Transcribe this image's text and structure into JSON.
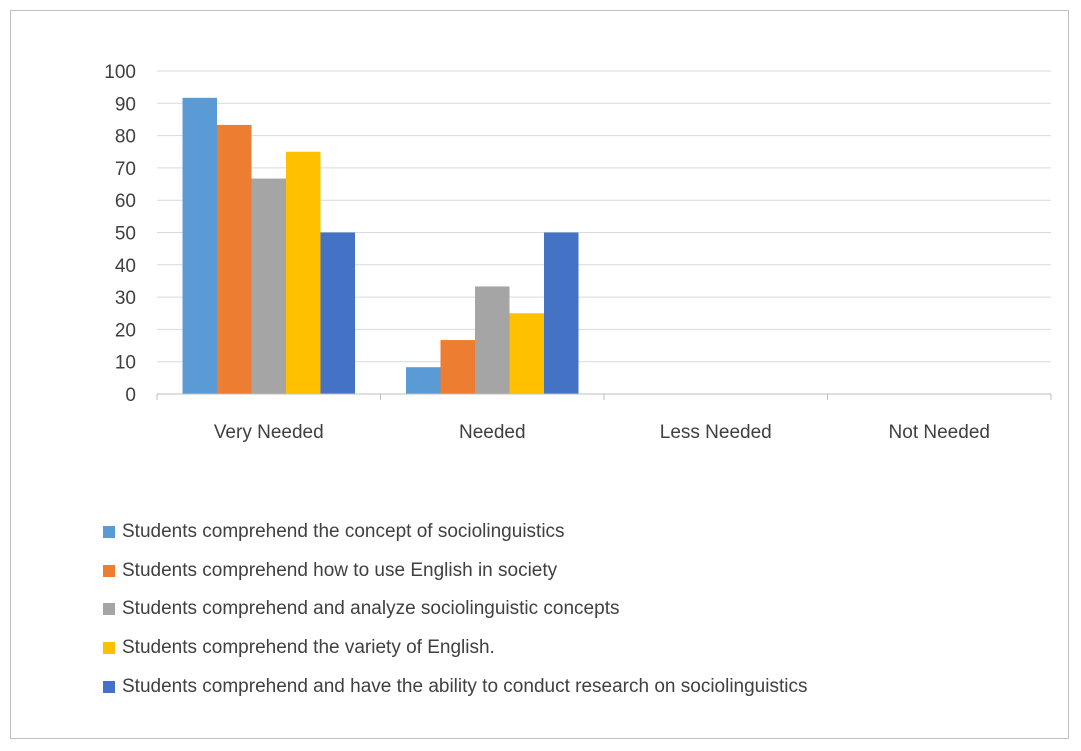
{
  "chart_data": {
    "type": "bar",
    "categories": [
      "Very Needed",
      "Needed",
      "Less Needed",
      "Not Needed"
    ],
    "series": [
      {
        "name": "Students comprehend the concept of sociolinguistics",
        "color": "#5b9bd5",
        "values": [
          91.7,
          8.3,
          0,
          0
        ]
      },
      {
        "name": "Students comprehend how to use English in society",
        "color": "#ed7d31",
        "values": [
          83.3,
          16.7,
          0,
          0
        ]
      },
      {
        "name": "Students comprehend and analyze sociolinguistic concepts",
        "color": "#a5a5a5",
        "values": [
          66.7,
          33.3,
          0,
          0
        ]
      },
      {
        "name": "Students comprehend the variety of English.",
        "color": "#ffc000",
        "values": [
          75,
          25,
          0,
          0
        ]
      },
      {
        "name": "Students comprehend and have the ability to conduct research on sociolinguistics",
        "color": "#4472c4",
        "values": [
          50,
          50,
          0,
          0
        ]
      }
    ],
    "yticks": [
      "0",
      "10",
      "20",
      "30",
      "40",
      "50",
      "60",
      "70",
      "80",
      "90",
      "100"
    ],
    "ylim": [
      0,
      100
    ],
    "grid": true,
    "legend_position": "bottom-left",
    "title": "",
    "xlabel": "",
    "ylabel": ""
  },
  "style": {
    "gridline_color": "#d9d9d9",
    "axis_color": "#bfbfbf",
    "border_color": "#bfbfbf"
  }
}
